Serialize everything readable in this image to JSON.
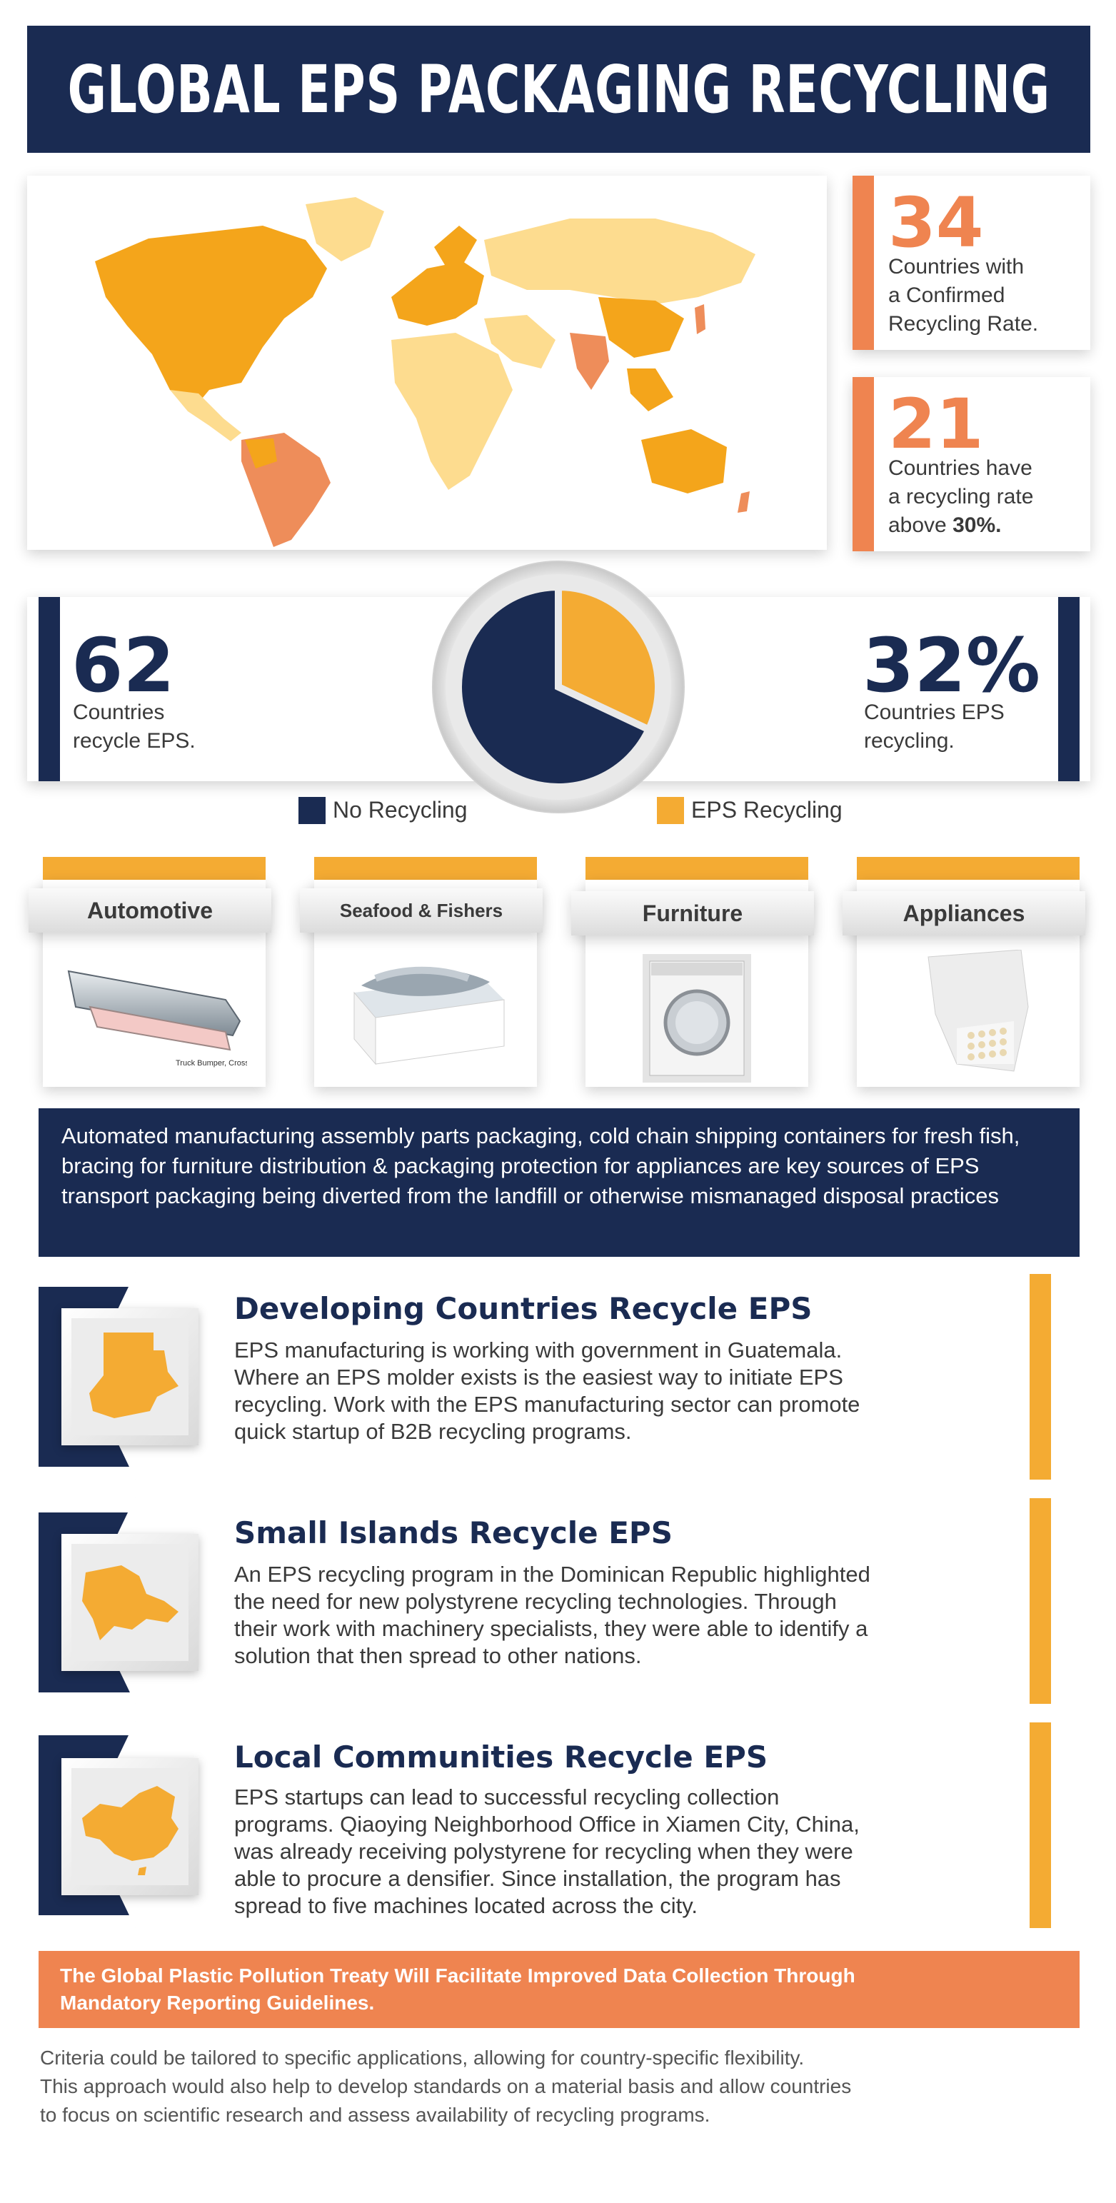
{
  "header": {
    "title": "GLOBAL EPS PACKAGING RECYCLING"
  },
  "colors": {
    "navy": "#1a2b52",
    "orange": "#ef8450",
    "yellow": "#f4ab33",
    "light_yellow": "#fddc8f"
  },
  "stats_right": [
    {
      "number": "34",
      "line1": "Countries with",
      "line2": "a Confirmed",
      "line3": "Recycling Rate."
    },
    {
      "number": "21",
      "line1": "Countries have",
      "line2": "a recycling rate",
      "line3_pre": "above ",
      "line3_bold": "30%."
    }
  ],
  "pie_section": {
    "left_number": "62",
    "left_line1": "Countries",
    "left_line2": "recycle EPS.",
    "right_number": "32%",
    "right_line1": "Countries EPS",
    "right_line2": "recycling.",
    "legend": [
      {
        "label": "No Recycling",
        "color": "#1a2b52"
      },
      {
        "label": "EPS Recycling",
        "color": "#f4ab33"
      }
    ]
  },
  "chart_data": {
    "type": "pie",
    "categories": [
      "No Recycling",
      "EPS Recycling"
    ],
    "values": [
      68,
      32
    ],
    "colors": [
      "#1a2b52",
      "#f4ab33"
    ]
  },
  "industries": [
    {
      "label": "Automotive",
      "icon": "bumper-cross-section-icon",
      "caption": "Truck Bumper, Cross-section"
    },
    {
      "label": "Seafood & Fishers",
      "icon": "fish-box-icon"
    },
    {
      "label": "Furniture",
      "icon": "washing-machine-packaging-icon"
    },
    {
      "label": "Appliances",
      "icon": "eps-corner-protector-icon"
    }
  ],
  "navy_paragraph": "Automated manufacturing assembly parts packaging, cold chain shipping containers for fresh fish, bracing for furniture distribution & packaging protection for appliances are key sources of EPS transport packaging being diverted from the landfill or otherwise mismanaged disposal practices",
  "features": [
    {
      "title": "Developing Countries Recycle EPS",
      "icon": "guatemala-map-icon",
      "lines": [
        "EPS manufacturing is working with government in Guatemala.",
        "Where an EPS molder exists is the easiest way to initiate EPS",
        "recycling. Work with the EPS manufacturing sector can promote",
        "quick startup of B2B recycling programs."
      ]
    },
    {
      "title": "Small Islands Recycle EPS",
      "icon": "dominican-republic-map-icon",
      "lines": [
        "An EPS recycling program in the Dominican Republic highlighted",
        "the need for new polystyrene recycling technologies. Through",
        "their work with machinery specialists, they were able to identify a",
        "solution that then spread to other nations."
      ]
    },
    {
      "title": "Local Communities Recycle EPS",
      "icon": "china-map-icon",
      "lines": [
        "EPS startups can lead to successful recycling collection",
        "programs. Qiaoying Neighborhood Office in Xiamen City, China,",
        "was already receiving polystyrene for recycling when they were",
        "able to procure a densifier. Since installation, the program has",
        "spread to five machines located across the city."
      ]
    }
  ],
  "banner": {
    "line1": "The Global Plastic Pollution Treaty Will Facilitate Improved Data Collection Through",
    "line2": "Mandatory Reporting Guidelines."
  },
  "footer": {
    "line1": "Criteria could be tailored to specific applications, allowing for country-specific flexibility.",
    "line2": "This approach would also help to develop standards on a material basis and allow countries",
    "line3": "to focus on scientific research and assess availability of recycling programs."
  }
}
